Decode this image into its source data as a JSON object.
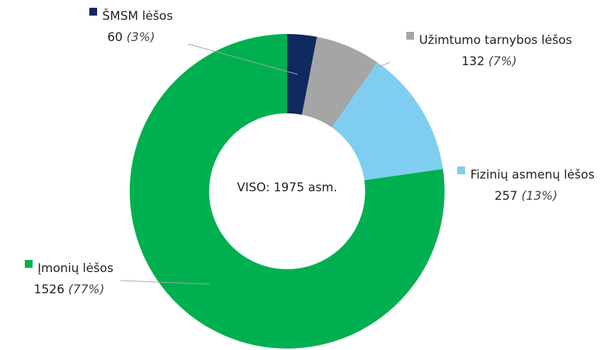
{
  "chart_data": {
    "type": "donut",
    "categories": [
      "ŠMSM lėšos",
      "Užimtumo tarnybos lėšos",
      "Fizinių asmenų lėšos",
      "Įmonių lėšos"
    ],
    "values": [
      60,
      132,
      257,
      1526
    ],
    "percent_labels": [
      "(3%)",
      "(7%)",
      "(13%)",
      "(77%)"
    ],
    "colors": [
      "#0e2a5e",
      "#a5a5a5",
      "#7fcef1",
      "#00b050"
    ],
    "center_label": "VISO: 1975 asm."
  }
}
